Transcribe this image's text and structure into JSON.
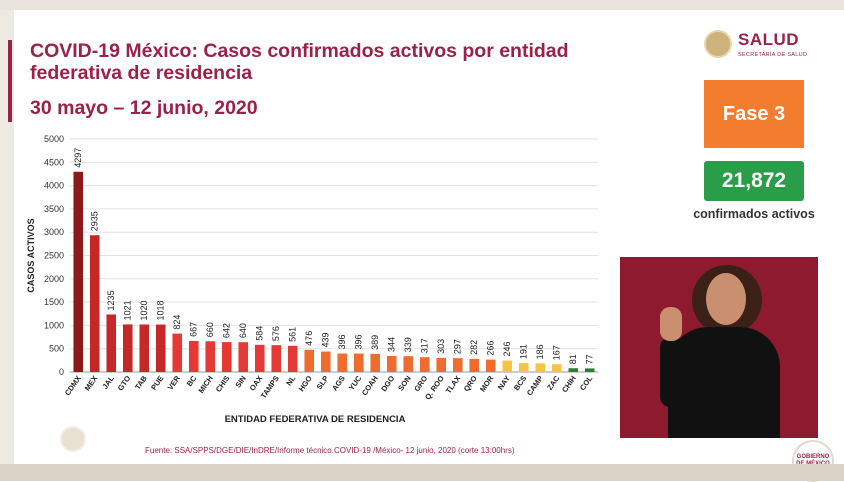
{
  "header": {
    "title": "COVID-19 México: Casos confirmados activos por entidad federativa de residencia",
    "subtitle": "30 mayo – 12 junio, 2020"
  },
  "logo": {
    "name": "SALUD",
    "subtitle": "SECRETARÍA DE SALUD"
  },
  "sidebar": {
    "phase": "Fase 3",
    "confirmed_count": "21,872",
    "confirmed_label": "confirmados activos"
  },
  "source": "Fuente: SSA/SPPS/DGE/DIE/InDRE/Informe técnico.COVID-19 /México- 12 junio, 2020 (corte 13:00hrs)",
  "corner_logo": "GOBIERNO DE MÉXICO",
  "colors": {
    "accent": "#9b2247",
    "dark_red": "#8b1a1a",
    "red": "#c62828",
    "bright_red": "#e53935",
    "orange": "#ef6c2e",
    "light_orange": "#f2a65a",
    "yellow": "#f4c542",
    "green": "#2e7d32"
  },
  "chart_data": {
    "type": "bar",
    "title": "",
    "xlabel": "ENTIDAD FEDERATIVA DE  RESIDENCIA",
    "ylabel": "CASOS ACTIVOS",
    "ylim": [
      0,
      5000
    ],
    "yticks": [
      0,
      500,
      1000,
      1500,
      2000,
      2500,
      3000,
      3500,
      4000,
      4500,
      5000
    ],
    "grid": true,
    "categories": [
      "CDMX",
      "MEX",
      "JAL",
      "GTO",
      "TAB",
      "PUE",
      "VER",
      "BC",
      "MICH",
      "CHIS",
      "SIN",
      "OAX",
      "TAMPS",
      "NL",
      "HGO",
      "SLP",
      "AGS",
      "YUC",
      "COAH",
      "DGO",
      "SON",
      "GRO",
      "Q. ROO",
      "TLAX",
      "QRO",
      "MOR",
      "NAY",
      "BCS",
      "CAMP",
      "ZAC",
      "CHIH",
      "COL"
    ],
    "values": [
      4297,
      2935,
      1235,
      1021,
      1020,
      1018,
      824,
      667,
      660,
      642,
      640,
      584,
      576,
      561,
      476,
      439,
      396,
      396,
      389,
      344,
      339,
      317,
      303,
      297,
      282,
      266,
      246,
      191,
      186,
      167,
      81,
      77
    ],
    "bar_colors": [
      "#8b1a1a",
      "#c62828",
      "#c62828",
      "#c62828",
      "#c62828",
      "#c62828",
      "#e53935",
      "#e53935",
      "#e53935",
      "#e53935",
      "#e53935",
      "#e53935",
      "#e53935",
      "#e53935",
      "#ef6c2e",
      "#ef6c2e",
      "#ef6c2e",
      "#ef6c2e",
      "#ef6c2e",
      "#ef6c2e",
      "#ef6c2e",
      "#ef6c2e",
      "#ef6c2e",
      "#ef6c2e",
      "#ef6c2e",
      "#ef6c2e",
      "#f4c542",
      "#f4c542",
      "#f4c542",
      "#f4c542",
      "#2e7d32",
      "#2e7d32"
    ]
  }
}
